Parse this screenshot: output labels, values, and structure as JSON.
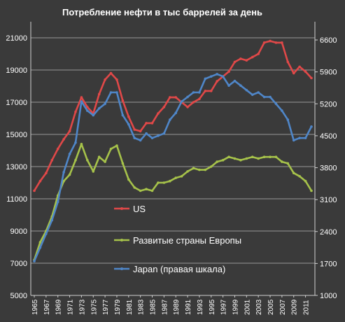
{
  "chart_data": {
    "type": "line",
    "title": "Потребление нефти в тыс баррелей за день",
    "x": [
      1965,
      1966,
      1967,
      1968,
      1969,
      1970,
      1971,
      1972,
      1973,
      1974,
      1975,
      1976,
      1977,
      1978,
      1979,
      1980,
      1981,
      1982,
      1983,
      1984,
      1985,
      1986,
      1987,
      1988,
      1989,
      1990,
      1991,
      1992,
      1993,
      1994,
      1995,
      1996,
      1997,
      1998,
      1999,
      2000,
      2001,
      2002,
      2003,
      2004,
      2005,
      2006,
      2007,
      2008,
      2009,
      2010,
      2011,
      2012
    ],
    "x_tick_labels": [
      "1965",
      "1967",
      "1969",
      "1971",
      "1973",
      "1975",
      "1977",
      "1979",
      "1981",
      "1983",
      "1985",
      "1987",
      "1989",
      "1991",
      "1993",
      "1995",
      "1997",
      "1999",
      "2001",
      "2003",
      "2005",
      "2007",
      "2009",
      "2011"
    ],
    "ylim": [
      5000,
      22000
    ],
    "y_ticks": [
      "5000",
      "7000",
      "9000",
      "11000",
      "13000",
      "15000",
      "17000",
      "19000",
      "21000"
    ],
    "y2lim": [
      1000,
      7000
    ],
    "y2_ticks": [
      "1000",
      "1700",
      "2400",
      "3100",
      "3800",
      "4500",
      "5200",
      "5900",
      "6600"
    ],
    "grid": true,
    "legend_placement": "center-left",
    "series": [
      {
        "name": "US",
        "axis": "left",
        "color": "#e04848",
        "values": [
          11500,
          12100,
          12600,
          13400,
          14100,
          14700,
          15200,
          16400,
          17300,
          16700,
          16300,
          17500,
          18400,
          18800,
          18400,
          17100,
          16100,
          15300,
          15200,
          15700,
          15700,
          16300,
          16700,
          17300,
          17300,
          17000,
          16700,
          17000,
          17200,
          17700,
          17700,
          18300,
          18600,
          18900,
          19500,
          19700,
          19600,
          19800,
          20000,
          20700,
          20800,
          20700,
          20700,
          19500,
          18800,
          19200,
          18900,
          18500
        ]
      },
      {
        "name": "Развитые страны Европы",
        "axis": "left",
        "color": "#a6c24a",
        "values": [
          7200,
          8300,
          9000,
          9900,
          11200,
          12100,
          12500,
          13400,
          14400,
          13400,
          12700,
          13600,
          13300,
          14100,
          14300,
          13200,
          12200,
          11700,
          11500,
          11600,
          11500,
          12000,
          12000,
          12100,
          12300,
          12400,
          12700,
          12900,
          12800,
          12800,
          13000,
          13300,
          13400,
          13600,
          13500,
          13400,
          13500,
          13600,
          13500,
          13600,
          13600,
          13600,
          13300,
          13200,
          12600,
          12400,
          12100,
          11500
        ]
      },
      {
        "name": "Japan (правая шкала)",
        "axis": "right",
        "color": "#4f86c8",
        "values": [
          1750,
          2050,
          2350,
          2650,
          3050,
          3700,
          4100,
          4350,
          5250,
          5050,
          4950,
          5100,
          5200,
          5450,
          5450,
          4950,
          4750,
          4450,
          4400,
          4550,
          4450,
          4500,
          4550,
          4850,
          5000,
          5250,
          5350,
          5450,
          5450,
          5750,
          5800,
          5850,
          5800,
          5600,
          5700,
          5600,
          5500,
          5400,
          5450,
          5350,
          5350,
          5200,
          5050,
          4850,
          4400,
          4450,
          4450,
          4700
        ]
      }
    ]
  }
}
